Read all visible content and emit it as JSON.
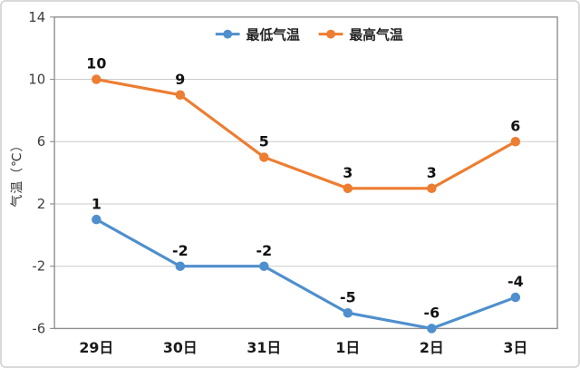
{
  "chart_data": {
    "type": "line",
    "title": "",
    "categories": [
      "29日",
      "30日",
      "31日",
      "1日",
      "2日",
      "3日"
    ],
    "series": [
      {
        "key": "min-temp",
        "name": "最低气温",
        "color": "#4f8fcd",
        "values": [
          1,
          -2,
          -2,
          -5,
          -6,
          -4
        ]
      },
      {
        "key": "max-temp",
        "name": "最高气温",
        "color": "#ed7d31",
        "values": [
          10,
          9,
          5,
          3,
          3,
          6
        ]
      }
    ],
    "ylabel": "气温（℃）",
    "ylim": [
      -6,
      14
    ],
    "yticks": [
      14,
      10,
      6,
      2,
      -2,
      -6
    ],
    "grid": true,
    "legend_position": "top",
    "marker": "circle",
    "data_labels": true
  },
  "colors": {
    "grid": "#cbcbcb",
    "axis": "#8f8f8f",
    "background": "#ffffff",
    "frame_border": "#d9d9d9"
  }
}
